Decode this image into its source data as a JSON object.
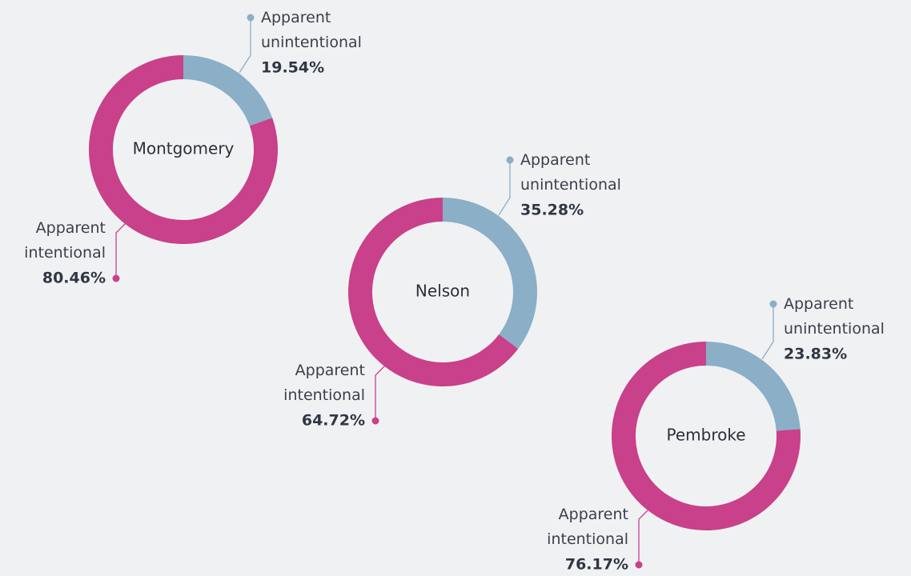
{
  "chart_data": [
    {
      "type": "pie",
      "title": "Montgomery",
      "categories": [
        "Apparent unintentional",
        "Apparent intentional"
      ],
      "values": [
        19.54,
        80.46
      ],
      "value_labels": [
        "19.54%",
        "80.46%"
      ],
      "colors": [
        "#8aafc7",
        "#c8418a"
      ]
    },
    {
      "type": "pie",
      "title": "Nelson",
      "categories": [
        "Apparent unintentional",
        "Apparent intentional"
      ],
      "values": [
        35.28,
        64.72
      ],
      "value_labels": [
        "35.28%",
        "64.72%"
      ],
      "colors": [
        "#8aafc7",
        "#c8418a"
      ]
    },
    {
      "type": "pie",
      "title": "Pembroke",
      "categories": [
        "Apparent unintentional",
        "Apparent intentional"
      ],
      "values": [
        23.83,
        76.17
      ],
      "value_labels": [
        "23.83%",
        "76.17%"
      ],
      "colors": [
        "#8aafc7",
        "#c8418a"
      ]
    }
  ]
}
